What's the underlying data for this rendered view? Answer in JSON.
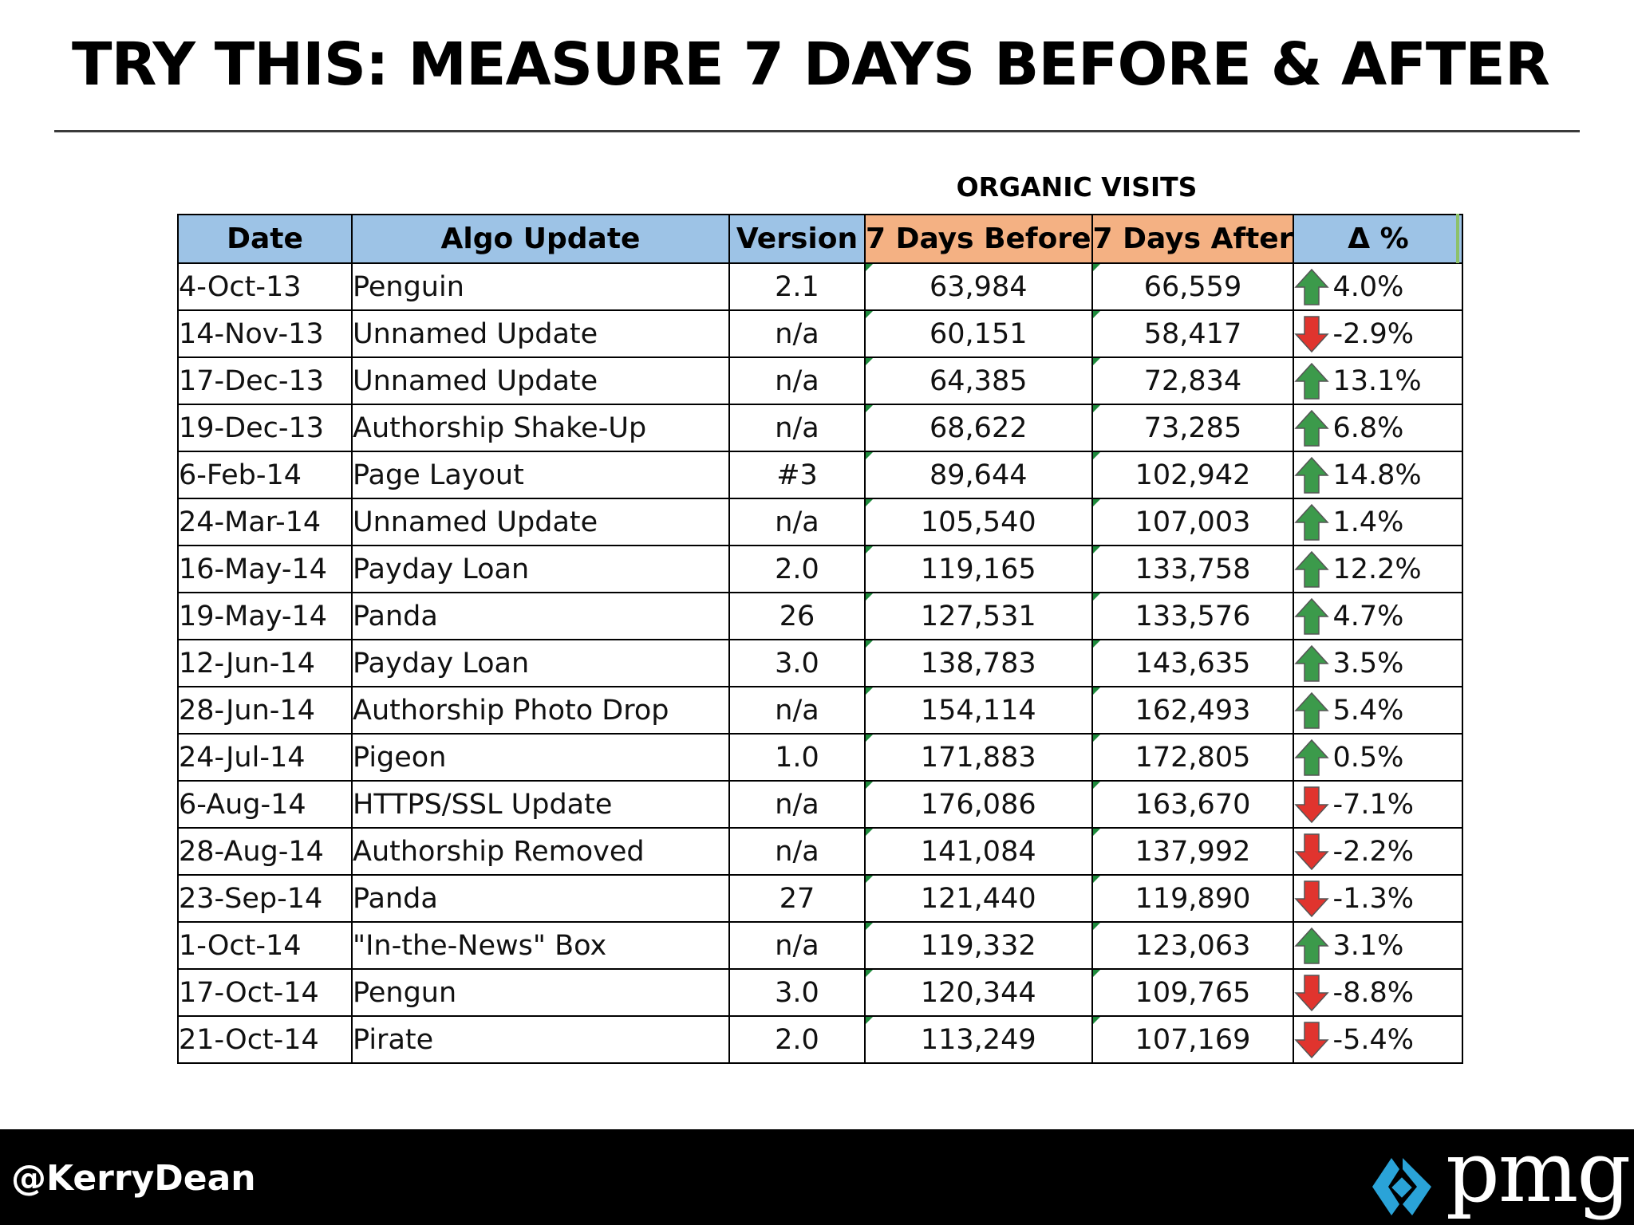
{
  "slide": {
    "title": "TRY THIS: MEASURE 7 DAYS BEFORE & AFTER",
    "handle": "@KerryDean",
    "logo_text": "pmg",
    "logo_color": "#2aa3d8"
  },
  "table": {
    "caption": "ORGANIC VISITS",
    "columns": [
      "Date",
      "Algo Update",
      "Version",
      "7 Days Before",
      "7 Days After",
      "Δ %"
    ],
    "header_colors": {
      "blue": "#9dc3e6",
      "orange": "#f4b183"
    },
    "arrow_colors": {
      "up": "#3c9a4b",
      "down": "#e0342e"
    },
    "rows": [
      {
        "date": "4-Oct-13",
        "algo": "Penguin",
        "version": "2.1",
        "before": "63,984",
        "after": "66,559",
        "change": "4.0%",
        "direction": "up"
      },
      {
        "date": "14-Nov-13",
        "algo": "Unnamed Update",
        "version": "n/a",
        "before": "60,151",
        "after": "58,417",
        "change": "-2.9%",
        "direction": "down"
      },
      {
        "date": "17-Dec-13",
        "algo": "Unnamed Update",
        "version": "n/a",
        "before": "64,385",
        "after": "72,834",
        "change": "13.1%",
        "direction": "up"
      },
      {
        "date": "19-Dec-13",
        "algo": "Authorship Shake-Up",
        "version": "n/a",
        "before": "68,622",
        "after": "73,285",
        "change": "6.8%",
        "direction": "up"
      },
      {
        "date": "6-Feb-14",
        "algo": "Page Layout",
        "version": "#3",
        "before": "89,644",
        "after": "102,942",
        "change": "14.8%",
        "direction": "up"
      },
      {
        "date": "24-Mar-14",
        "algo": "Unnamed Update",
        "version": "n/a",
        "before": "105,540",
        "after": "107,003",
        "change": "1.4%",
        "direction": "up"
      },
      {
        "date": "16-May-14",
        "algo": "Payday Loan",
        "version": "2.0",
        "before": "119,165",
        "after": "133,758",
        "change": "12.2%",
        "direction": "up"
      },
      {
        "date": "19-May-14",
        "algo": "Panda",
        "version": "26",
        "before": "127,531",
        "after": "133,576",
        "change": "4.7%",
        "direction": "up"
      },
      {
        "date": "12-Jun-14",
        "algo": "Payday Loan",
        "version": "3.0",
        "before": "138,783",
        "after": "143,635",
        "change": "3.5%",
        "direction": "up"
      },
      {
        "date": "28-Jun-14",
        "algo": "Authorship Photo Drop",
        "version": "n/a",
        "before": "154,114",
        "after": "162,493",
        "change": "5.4%",
        "direction": "up"
      },
      {
        "date": "24-Jul-14",
        "algo": "Pigeon",
        "version": "1.0",
        "before": "171,883",
        "after": "172,805",
        "change": "0.5%",
        "direction": "up"
      },
      {
        "date": "6-Aug-14",
        "algo": "HTTPS/SSL Update",
        "version": "n/a",
        "before": "176,086",
        "after": "163,670",
        "change": "-7.1%",
        "direction": "down"
      },
      {
        "date": "28-Aug-14",
        "algo": "Authorship Removed",
        "version": "n/a",
        "before": "141,084",
        "after": "137,992",
        "change": "-2.2%",
        "direction": "down"
      },
      {
        "date": "23-Sep-14",
        "algo": "Panda",
        "version": "27",
        "before": "121,440",
        "after": "119,890",
        "change": "-1.3%",
        "direction": "down"
      },
      {
        "date": "1-Oct-14",
        "algo": "\"In-the-News\" Box",
        "version": "n/a",
        "before": "119,332",
        "after": "123,063",
        "change": "3.1%",
        "direction": "up"
      },
      {
        "date": "17-Oct-14",
        "algo": "Pengun",
        "version": "3.0",
        "before": "120,344",
        "after": "109,765",
        "change": "-8.8%",
        "direction": "down"
      },
      {
        "date": "21-Oct-14",
        "algo": "Pirate",
        "version": "2.0",
        "before": "113,249",
        "after": "107,169",
        "change": "-5.4%",
        "direction": "down"
      }
    ]
  }
}
